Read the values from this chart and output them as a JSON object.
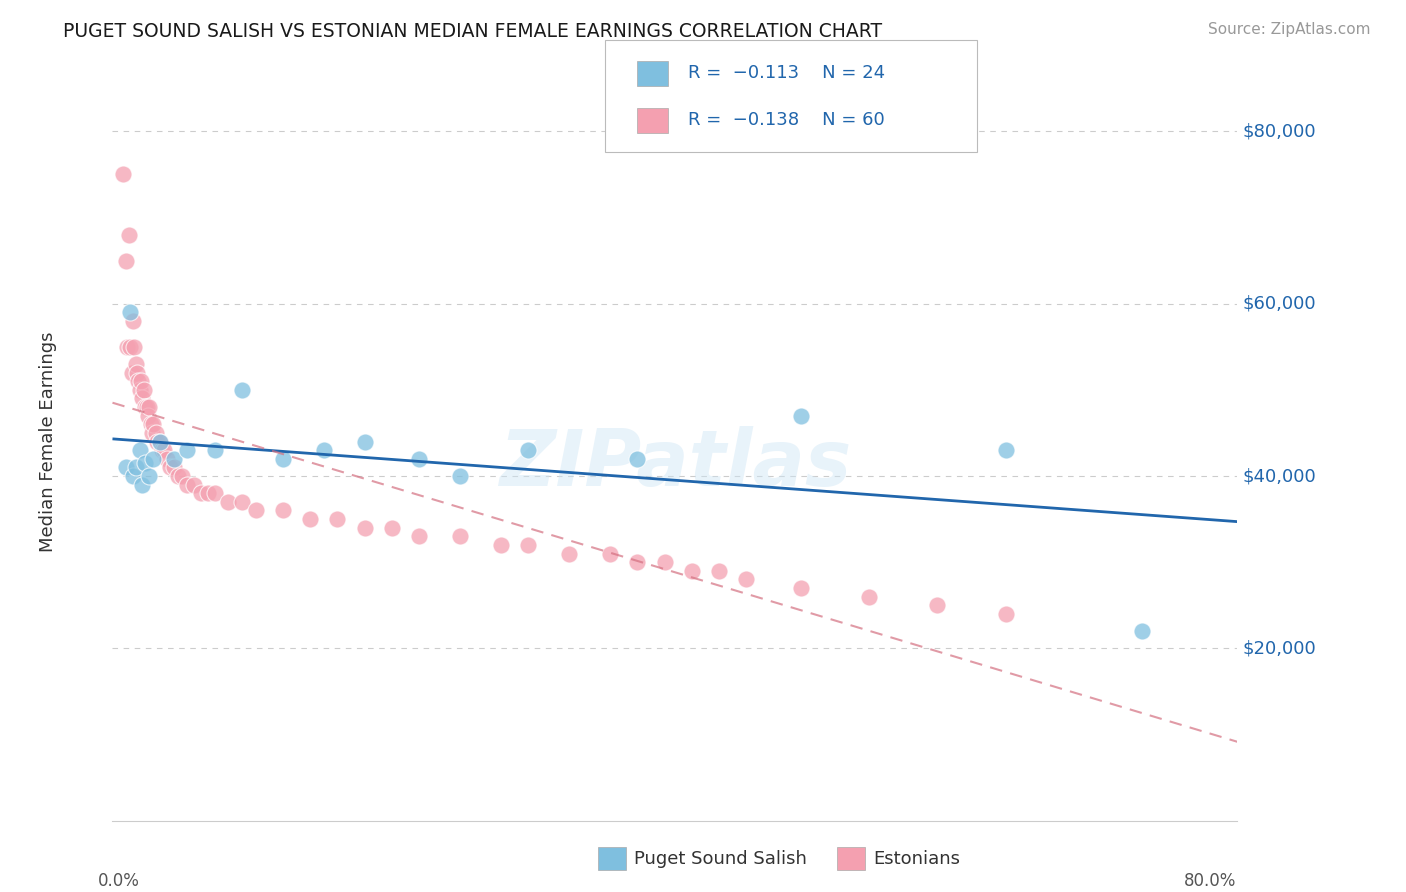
{
  "title": "PUGET SOUND SALISH VS ESTONIAN MEDIAN FEMALE EARNINGS CORRELATION CHART",
  "source": "Source: ZipAtlas.com",
  "ylabel": "Median Female Earnings",
  "ytick_labels": [
    "$20,000",
    "$40,000",
    "$60,000",
    "$80,000"
  ],
  "ytick_values": [
    20000,
    40000,
    60000,
    80000
  ],
  "ylim": [
    0,
    88000
  ],
  "xlim": [
    -0.005,
    0.82
  ],
  "background_color": "#ffffff",
  "watermark": "ZIPatlas",
  "blue_color": "#7fbfdf",
  "pink_color": "#f4a0b0",
  "blue_line_color": "#2166ac",
  "pink_line_color": "#d47080",
  "grid_color": "#cccccc",
  "puget_x": [
    0.005,
    0.008,
    0.01,
    0.012,
    0.015,
    0.017,
    0.019,
    0.022,
    0.025,
    0.03,
    0.04,
    0.05,
    0.07,
    0.09,
    0.12,
    0.15,
    0.18,
    0.22,
    0.25,
    0.3,
    0.38,
    0.5,
    0.65,
    0.75
  ],
  "puget_y": [
    41000,
    59000,
    40000,
    41000,
    43000,
    39000,
    41500,
    40000,
    42000,
    44000,
    42000,
    43000,
    43000,
    50000,
    42000,
    43000,
    44000,
    42000,
    40000,
    43000,
    42000,
    47000,
    43000,
    22000
  ],
  "estonian_x": [
    0.003,
    0.005,
    0.006,
    0.007,
    0.008,
    0.009,
    0.01,
    0.011,
    0.012,
    0.013,
    0.014,
    0.015,
    0.016,
    0.017,
    0.018,
    0.019,
    0.02,
    0.021,
    0.022,
    0.023,
    0.024,
    0.025,
    0.027,
    0.028,
    0.03,
    0.031,
    0.033,
    0.035,
    0.037,
    0.04,
    0.043,
    0.046,
    0.05,
    0.055,
    0.06,
    0.065,
    0.07,
    0.08,
    0.09,
    0.1,
    0.12,
    0.14,
    0.16,
    0.18,
    0.2,
    0.22,
    0.25,
    0.28,
    0.3,
    0.33,
    0.36,
    0.38,
    0.4,
    0.42,
    0.44,
    0.46,
    0.5,
    0.55,
    0.6,
    0.65
  ],
  "estonian_y": [
    75000,
    65000,
    55000,
    68000,
    55000,
    52000,
    58000,
    55000,
    53000,
    52000,
    51000,
    50000,
    51000,
    49000,
    50000,
    48000,
    48000,
    47000,
    48000,
    46000,
    45000,
    46000,
    45000,
    44000,
    44000,
    43000,
    43000,
    42000,
    41000,
    41000,
    40000,
    40000,
    39000,
    39000,
    38000,
    38000,
    38000,
    37000,
    37000,
    36000,
    36000,
    35000,
    35000,
    34000,
    34000,
    33000,
    33000,
    32000,
    32000,
    31000,
    31000,
    30000,
    30000,
    29000,
    29000,
    28000,
    27000,
    26000,
    25000,
    24000
  ]
}
